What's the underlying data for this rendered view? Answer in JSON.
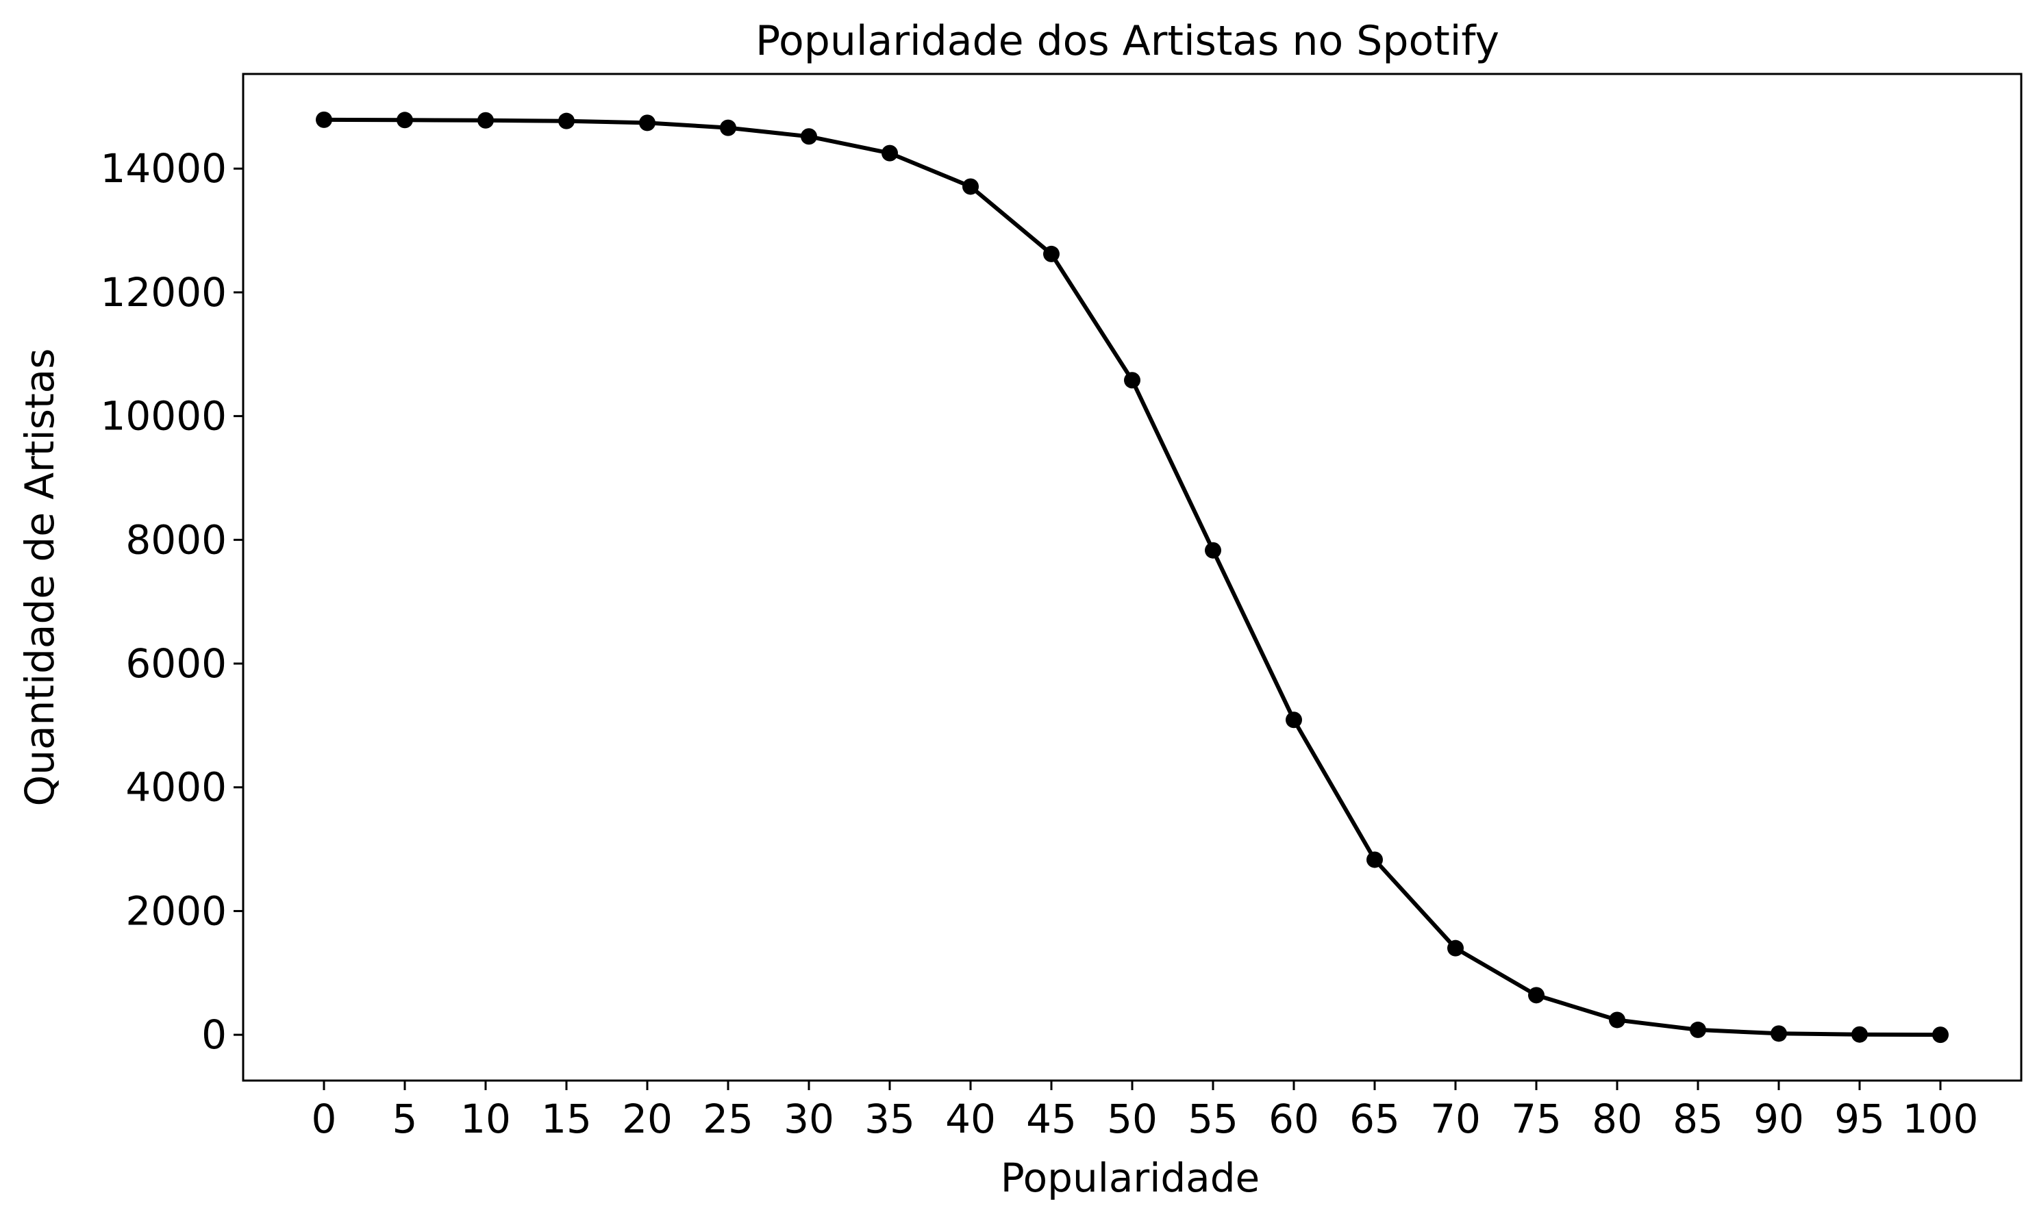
{
  "chart_data": {
    "type": "line",
    "title": "Popularidade dos Artistas no Spotify",
    "xlabel": "Popularidade",
    "ylabel": "Quantidade de Artistas",
    "x": [
      0,
      5,
      10,
      15,
      20,
      25,
      30,
      35,
      40,
      45,
      50,
      55,
      60,
      65,
      70,
      75,
      80,
      85,
      90,
      95,
      100
    ],
    "series": [
      {
        "values": [
          14790,
          14785,
          14780,
          14770,
          14740,
          14660,
          14520,
          14250,
          13710,
          12620,
          10580,
          7830,
          5090,
          2830,
          1400,
          640,
          240,
          80,
          20,
          5,
          0
        ]
      }
    ],
    "xticks": [
      "0",
      "5",
      "10",
      "15",
      "20",
      "25",
      "30",
      "35",
      "40",
      "45",
      "50",
      "55",
      "60",
      "65",
      "70",
      "75",
      "80",
      "85",
      "90",
      "95",
      "100"
    ],
    "yticks": [
      "0",
      "2000",
      "4000",
      "6000",
      "8000",
      "10000",
      "12000",
      "14000"
    ],
    "xlim": [
      -5,
      105
    ],
    "ylim": [
      -740,
      15530
    ],
    "grid": false,
    "legend": "none",
    "colors": {
      "line": "#000000",
      "marker": "#000000",
      "axes": "#000000",
      "background": "#ffffff"
    }
  }
}
